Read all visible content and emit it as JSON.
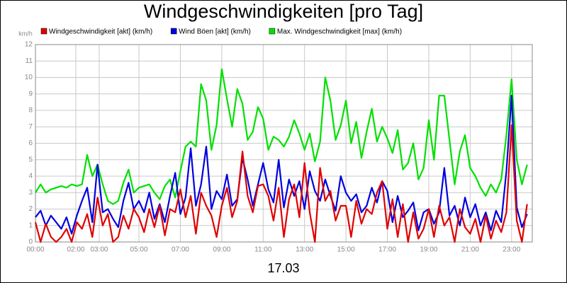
{
  "chart_data": {
    "type": "line",
    "title": "Windgeschwindigkeiten [pro Tag]",
    "y_label": "km/h",
    "x_label": "17.03",
    "xlim": [
      0,
      24
    ],
    "xticks": [
      {
        "value": 0,
        "label": "00:00"
      },
      {
        "value": 1.95,
        "label": "02:00"
      },
      {
        "value": 3.08,
        "label": "03:00"
      },
      {
        "value": 5,
        "label": "05:00"
      },
      {
        "value": 7,
        "label": "07:00"
      },
      {
        "value": 9,
        "label": "09:00"
      },
      {
        "value": 11,
        "label": "11:00"
      },
      {
        "value": 13,
        "label": "13:00"
      },
      {
        "value": 15,
        "label": "15:00"
      },
      {
        "value": 17,
        "label": "17:00"
      },
      {
        "value": 19,
        "label": "19:00"
      },
      {
        "value": 21,
        "label": "21:00"
      },
      {
        "value": 23,
        "label": "23:00"
      }
    ],
    "ylim": [
      0,
      12
    ],
    "yticks": [
      0,
      1,
      2,
      3,
      4,
      5,
      6,
      7,
      8,
      9,
      10,
      11,
      12
    ],
    "grid": true,
    "x": [
      0,
      0.25,
      0.5,
      0.75,
      1,
      1.25,
      1.5,
      1.75,
      2,
      2.25,
      2.5,
      2.75,
      3,
      3.25,
      3.5,
      3.75,
      4,
      4.25,
      4.5,
      4.75,
      5,
      5.25,
      5.5,
      5.75,
      6,
      6.25,
      6.5,
      6.75,
      7,
      7.25,
      7.5,
      7.75,
      8,
      8.25,
      8.5,
      8.75,
      9,
      9.25,
      9.5,
      9.75,
      10,
      10.25,
      10.5,
      10.75,
      11,
      11.25,
      11.5,
      11.75,
      12,
      12.25,
      12.5,
      12.75,
      13,
      13.25,
      13.5,
      13.75,
      14,
      14.25,
      14.5,
      14.75,
      15,
      15.25,
      15.5,
      15.75,
      16,
      16.25,
      16.5,
      16.75,
      17,
      17.25,
      17.5,
      17.75,
      18,
      18.25,
      18.5,
      18.75,
      19,
      19.25,
      19.5,
      19.75,
      20,
      20.25,
      20.5,
      20.75,
      21,
      21.25,
      21.5,
      21.75,
      22,
      22.25,
      22.5,
      22.75,
      23,
      23.25,
      23.5,
      23.75
    ],
    "series": [
      {
        "name": "Windgeschwindigkeit [akt] (km/h)",
        "color": "#e00000",
        "values": [
          1.2,
          0,
          1.1,
          0.3,
          0,
          0.3,
          0.8,
          0,
          1.2,
          0.8,
          1.7,
          0.3,
          2.7,
          1,
          1.7,
          0,
          0.3,
          1.6,
          0.8,
          2,
          1.5,
          0.6,
          2,
          0.9,
          2.2,
          0.4,
          2,
          1.8,
          3.2,
          1.5,
          2.8,
          0.5,
          3,
          2.2,
          1.6,
          0.3,
          2.2,
          3.3,
          1.5,
          2.5,
          5.5,
          2.8,
          1.8,
          3.4,
          3.5,
          2.8,
          1.3,
          3.3,
          0.3,
          2.6,
          3.5,
          1.5,
          4.8,
          1.8,
          0,
          4.5,
          2.5,
          3.1,
          1.3,
          2.2,
          2.2,
          0.3,
          2.5,
          1.1,
          2,
          1.7,
          3,
          3.7,
          0.8,
          2.6,
          0.3,
          2.3,
          0,
          1.8,
          0.2,
          0.8,
          2,
          0.3,
          2.2,
          1,
          1.5,
          0,
          2,
          0.9,
          0.5,
          1.4,
          0,
          1.6,
          0.2,
          1.3,
          0.6,
          1.8,
          7.1,
          1.3,
          0,
          2.3
        ]
      },
      {
        "name": "Wind Böen [akt] (km/h)",
        "color": "#0000e0",
        "values": [
          1.5,
          1.9,
          1,
          1.6,
          1.2,
          0.8,
          1.5,
          0.5,
          1.6,
          2.5,
          3.3,
          1.2,
          4.7,
          1.8,
          2,
          1.4,
          0.9,
          2.5,
          3.6,
          2,
          2.5,
          1.8,
          3,
          1.4,
          2.3,
          1.2,
          2.8,
          4.2,
          1.7,
          2.7,
          5.7,
          2.2,
          3.5,
          5.8,
          2,
          3.1,
          2.6,
          4.1,
          2.2,
          2.6,
          5.1,
          3.8,
          2.2,
          3.5,
          4.8,
          3.2,
          2.4,
          5,
          2.1,
          3.8,
          2.8,
          3.7,
          2,
          4.3,
          3.1,
          2.5,
          3.8,
          2.8,
          1.9,
          4,
          3,
          2.5,
          2.9,
          1.8,
          2.2,
          3.3,
          2.4,
          3.7,
          3.1,
          1.2,
          2.8,
          1.5,
          1.9,
          2.4,
          0.7,
          1.8,
          2,
          1.1,
          1.8,
          4.5,
          1.6,
          2.2,
          1,
          2.7,
          1.5,
          2.3,
          1,
          1.8,
          0.7,
          1.9,
          1.2,
          4.3,
          8.9,
          2.1,
          0.9,
          1.7
        ]
      },
      {
        "name": "Max. Windgeschwindigkeit [max] (km/h)",
        "color": "#00e000",
        "values": [
          3,
          3.5,
          3,
          3.2,
          3.3,
          3.4,
          3.3,
          3.5,
          3.4,
          3.5,
          5.3,
          4,
          4.7,
          3.5,
          2.5,
          2.3,
          2.5,
          3.6,
          4.4,
          3,
          3.3,
          3.4,
          3.5,
          3,
          2.6,
          3.4,
          3.8,
          2.7,
          4.3,
          5.8,
          6.1,
          5.8,
          9.6,
          8.6,
          5.6,
          7.1,
          10.5,
          8.7,
          7,
          9.3,
          8.4,
          6.2,
          6.7,
          8.2,
          7.5,
          5.6,
          6.4,
          6.2,
          5.8,
          6.4,
          7.4,
          6.6,
          5.6,
          6.6,
          4.9,
          6.1,
          10,
          8.6,
          6.2,
          7.1,
          8.6,
          6,
          7.3,
          5.1,
          6.7,
          8.1,
          6.1,
          7,
          6.3,
          5.4,
          6.8,
          4.4,
          4.8,
          6,
          3.8,
          4.5,
          7.4,
          5,
          8.9,
          8.9,
          6.2,
          3.5,
          5.5,
          6.5,
          4.5,
          4,
          3.3,
          2.8,
          3.5,
          3,
          3.8,
          6.5,
          9.9,
          5,
          3.5,
          4.7
        ]
      }
    ]
  }
}
